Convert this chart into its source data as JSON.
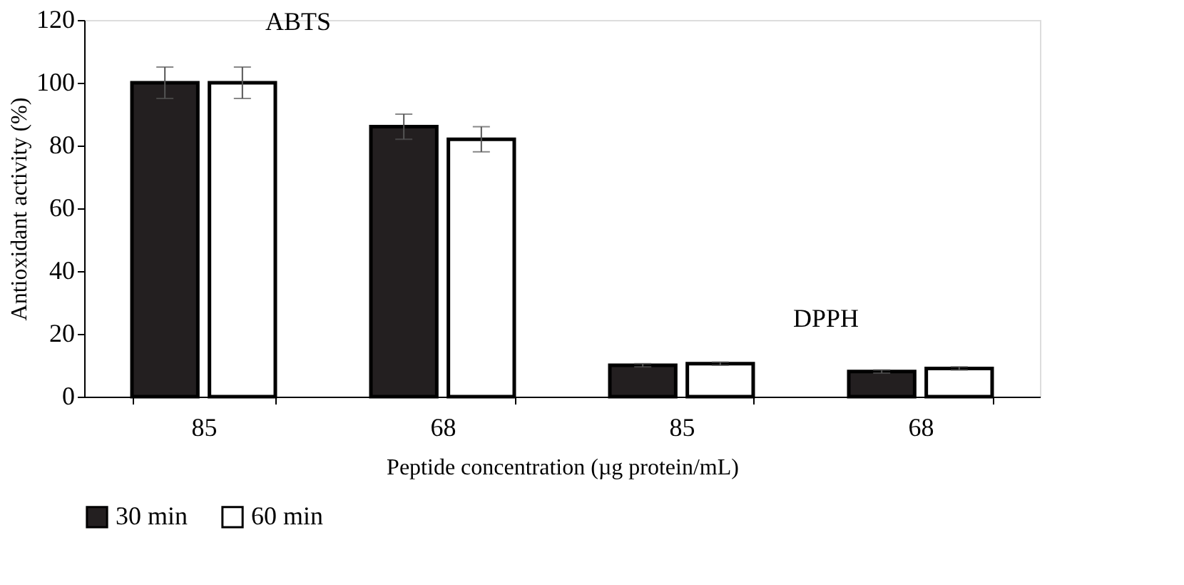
{
  "chart_data": {
    "type": "bar",
    "xlabel": "Peptide concentration (µg protein/mL)",
    "ylabel": "Antioxidant activity (%)",
    "categories": [
      "85",
      "68",
      "85",
      "68"
    ],
    "series": [
      {
        "name": "30 min",
        "color": "#231f20",
        "values": [
          100,
          86,
          10,
          8
        ],
        "errors": [
          5,
          4,
          0.5,
          0.5
        ]
      },
      {
        "name": "60 min",
        "color": "#ffffff",
        "values": [
          100,
          82,
          10.5,
          9
        ],
        "errors": [
          5,
          4,
          0.5,
          0.5
        ]
      }
    ],
    "ylim": [
      0,
      120
    ],
    "yticks": [
      0,
      20,
      40,
      60,
      80,
      100,
      120
    ],
    "grid": false,
    "legend": "bottom",
    "annotations": [
      "ABTS",
      "DPPH"
    ]
  }
}
